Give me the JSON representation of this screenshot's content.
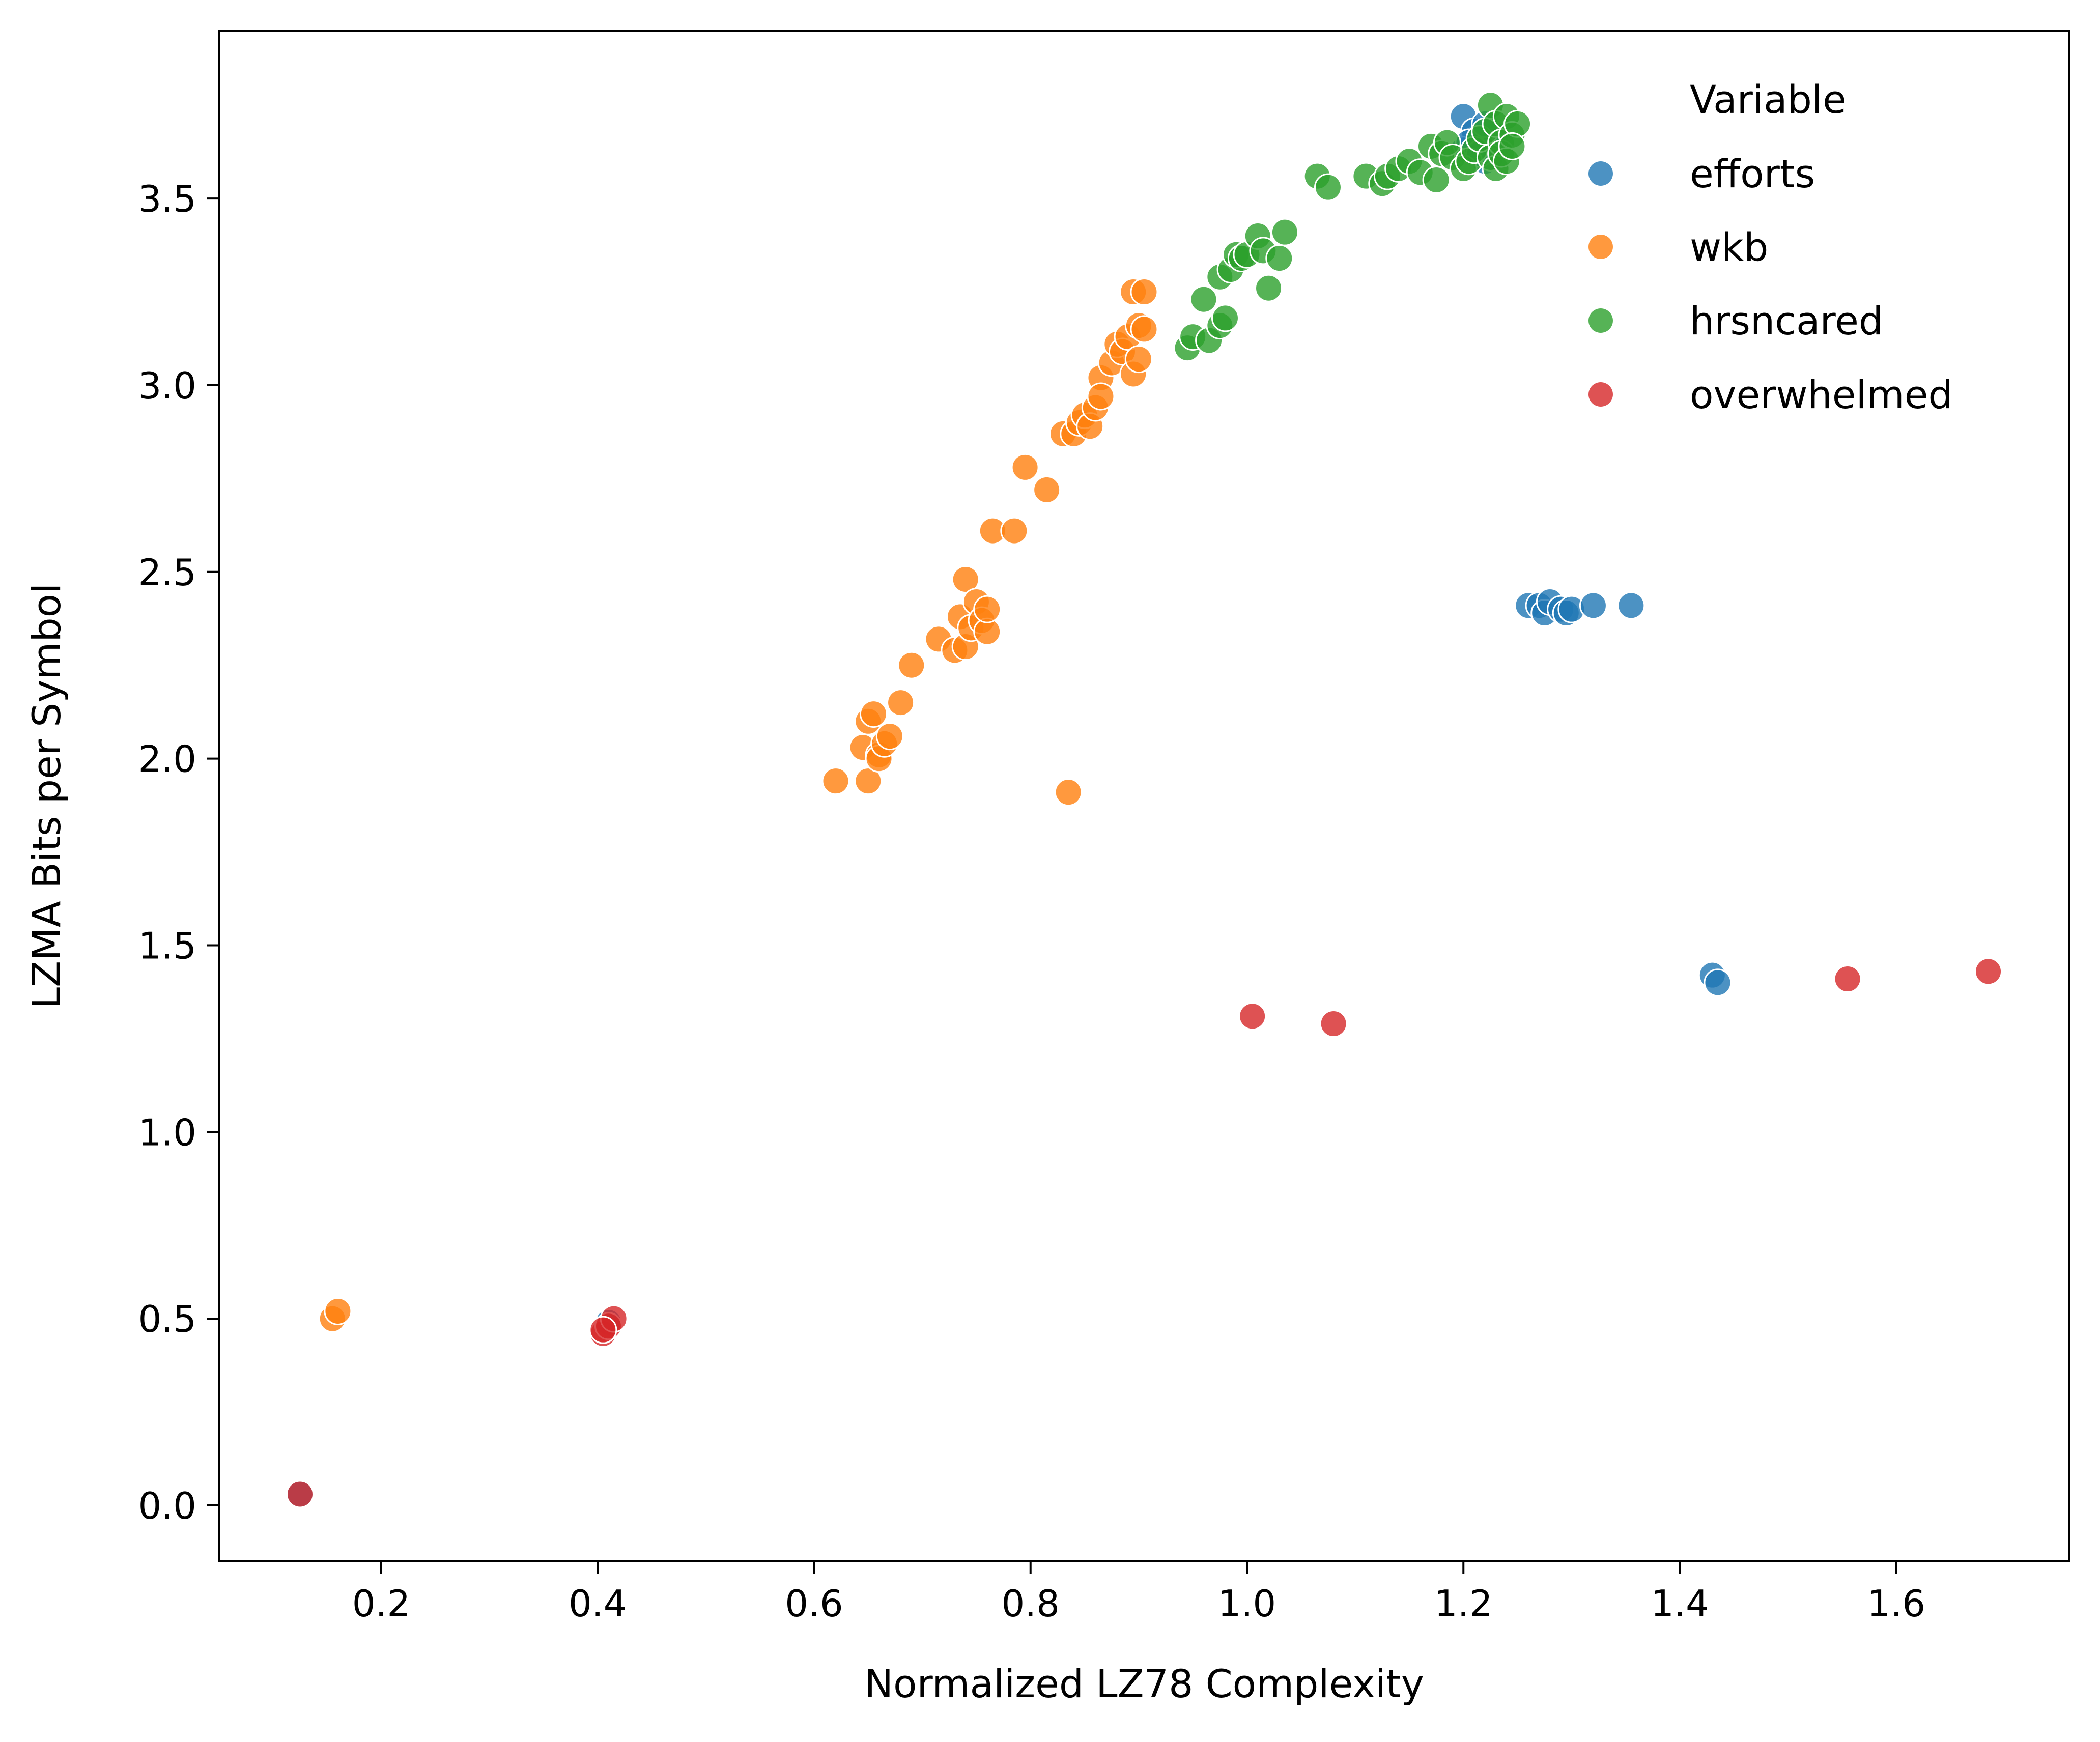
{
  "chart_data": {
    "type": "scatter",
    "title": "",
    "xlabel": "Normalized LZ78 Complexity",
    "ylabel": "LZMA Bits per Symbol",
    "xlim": [
      0.05,
      1.76
    ],
    "ylim": [
      -0.15,
      3.95
    ],
    "xticks": [
      0.2,
      0.4,
      0.6,
      0.8,
      1.0,
      1.2,
      1.4,
      1.6
    ],
    "xtick_labels": [
      "0.2",
      "0.4",
      "0.6",
      "0.8",
      "1.0",
      "1.2",
      "1.4",
      "1.6"
    ],
    "yticks": [
      0.0,
      0.5,
      1.0,
      1.5,
      2.0,
      2.5,
      3.0,
      3.5
    ],
    "ytick_labels": [
      "0.0",
      "0.5",
      "1.0",
      "1.5",
      "2.0",
      "2.5",
      "3.0",
      "3.5"
    ],
    "grid": false,
    "legend": {
      "title": "Variable",
      "placement": "upper right"
    },
    "series": [
      {
        "name": "efforts",
        "color": "#1f77b4",
        "points": [
          [
            1.2,
            3.72
          ],
          [
            1.21,
            3.68
          ],
          [
            1.22,
            3.6
          ],
          [
            1.2,
            3.63
          ],
          [
            1.205,
            3.65
          ],
          [
            1.215,
            3.62
          ],
          [
            1.23,
            3.67
          ],
          [
            1.22,
            3.7
          ],
          [
            1.26,
            2.41
          ],
          [
            1.27,
            2.41
          ],
          [
            1.275,
            2.39
          ],
          [
            1.28,
            2.42
          ],
          [
            1.29,
            2.4
          ],
          [
            1.295,
            2.39
          ],
          [
            1.3,
            2.4
          ],
          [
            1.32,
            2.41
          ],
          [
            1.355,
            2.41
          ],
          [
            1.43,
            1.42
          ],
          [
            1.435,
            1.4
          ],
          [
            0.41,
            0.49
          ],
          [
            0.125,
            0.03
          ]
        ]
      },
      {
        "name": "wkb",
        "color": "#ff7f0e",
        "points": [
          [
            0.62,
            1.94
          ],
          [
            0.65,
            1.94
          ],
          [
            0.645,
            2.03
          ],
          [
            0.65,
            2.1
          ],
          [
            0.655,
            2.12
          ],
          [
            0.66,
            2.01
          ],
          [
            0.66,
            2.0
          ],
          [
            0.665,
            2.04
          ],
          [
            0.67,
            2.06
          ],
          [
            0.68,
            2.15
          ],
          [
            0.69,
            2.25
          ],
          [
            0.715,
            2.32
          ],
          [
            0.73,
            2.29
          ],
          [
            0.735,
            2.38
          ],
          [
            0.74,
            2.48
          ],
          [
            0.74,
            2.3
          ],
          [
            0.745,
            2.35
          ],
          [
            0.75,
            2.42
          ],
          [
            0.755,
            2.37
          ],
          [
            0.76,
            2.34
          ],
          [
            0.76,
            2.4
          ],
          [
            0.765,
            2.61
          ],
          [
            0.785,
            2.61
          ],
          [
            0.795,
            2.78
          ],
          [
            0.815,
            2.72
          ],
          [
            0.83,
            2.87
          ],
          [
            0.84,
            2.87
          ],
          [
            0.845,
            2.9
          ],
          [
            0.85,
            2.92
          ],
          [
            0.855,
            2.89
          ],
          [
            0.86,
            2.94
          ],
          [
            0.865,
            3.02
          ],
          [
            0.865,
            2.97
          ],
          [
            0.875,
            3.06
          ],
          [
            0.88,
            3.11
          ],
          [
            0.885,
            3.09
          ],
          [
            0.89,
            3.13
          ],
          [
            0.895,
            3.25
          ],
          [
            0.895,
            3.03
          ],
          [
            0.9,
            3.16
          ],
          [
            0.9,
            3.07
          ],
          [
            0.905,
            3.15
          ],
          [
            0.905,
            3.25
          ],
          [
            0.835,
            1.91
          ],
          [
            0.155,
            0.5
          ],
          [
            0.16,
            0.52
          ]
        ]
      },
      {
        "name": "hrsncared",
        "color": "#2ca02c",
        "points": [
          [
            0.945,
            3.1
          ],
          [
            0.95,
            3.13
          ],
          [
            0.96,
            3.23
          ],
          [
            0.965,
            3.12
          ],
          [
            0.975,
            3.16
          ],
          [
            0.975,
            3.29
          ],
          [
            0.98,
            3.18
          ],
          [
            0.985,
            3.31
          ],
          [
            0.99,
            3.35
          ],
          [
            0.995,
            3.34
          ],
          [
            1.0,
            3.35
          ],
          [
            1.01,
            3.4
          ],
          [
            1.015,
            3.36
          ],
          [
            1.02,
            3.26
          ],
          [
            1.03,
            3.34
          ],
          [
            1.035,
            3.41
          ],
          [
            1.065,
            3.56
          ],
          [
            1.075,
            3.53
          ],
          [
            1.11,
            3.56
          ],
          [
            1.125,
            3.54
          ],
          [
            1.13,
            3.56
          ],
          [
            1.14,
            3.58
          ],
          [
            1.15,
            3.6
          ],
          [
            1.16,
            3.57
          ],
          [
            1.17,
            3.64
          ],
          [
            1.175,
            3.55
          ],
          [
            1.18,
            3.62
          ],
          [
            1.185,
            3.65
          ],
          [
            1.19,
            3.61
          ],
          [
            1.2,
            3.58
          ],
          [
            1.205,
            3.6
          ],
          [
            1.21,
            3.63
          ],
          [
            1.215,
            3.66
          ],
          [
            1.22,
            3.68
          ],
          [
            1.225,
            3.75
          ],
          [
            1.225,
            3.61
          ],
          [
            1.23,
            3.58
          ],
          [
            1.23,
            3.7
          ],
          [
            1.235,
            3.65
          ],
          [
            1.235,
            3.62
          ],
          [
            1.24,
            3.72
          ],
          [
            1.24,
            3.6
          ],
          [
            1.245,
            3.67
          ],
          [
            1.25,
            3.7
          ],
          [
            1.245,
            3.64
          ]
        ]
      },
      {
        "name": "overwhelmed",
        "color": "#d62728",
        "points": [
          [
            1.005,
            1.31
          ],
          [
            1.08,
            1.29
          ],
          [
            1.555,
            1.41
          ],
          [
            1.685,
            1.43
          ],
          [
            0.405,
            0.46
          ],
          [
            0.41,
            0.48
          ],
          [
            0.415,
            0.5
          ],
          [
            0.405,
            0.47
          ],
          [
            0.125,
            0.03
          ]
        ]
      }
    ]
  }
}
